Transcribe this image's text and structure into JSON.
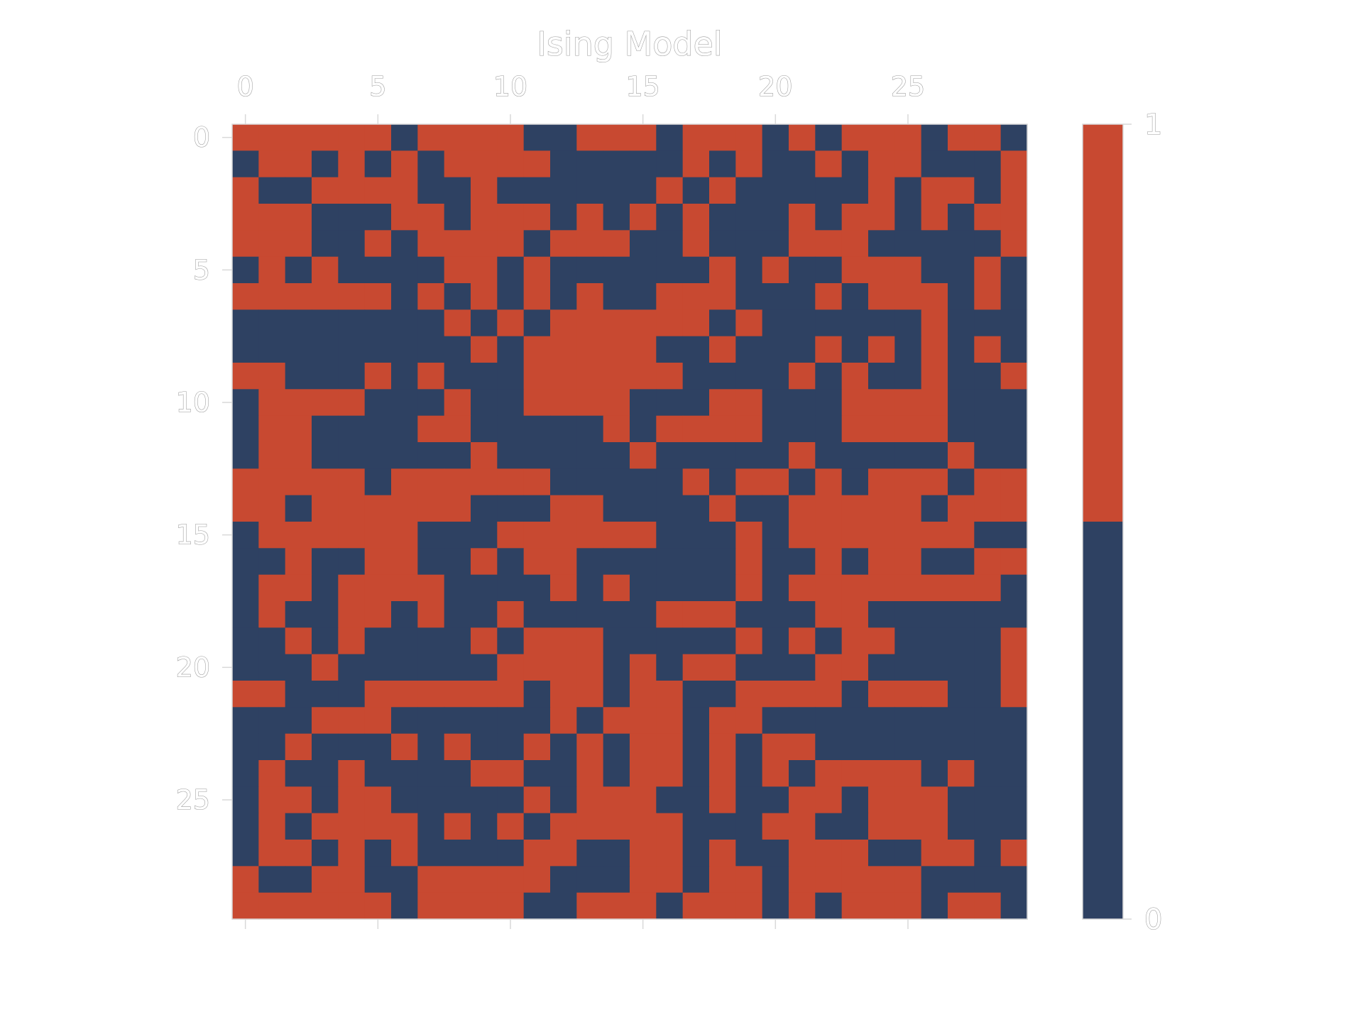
{
  "chart_data": {
    "type": "heatmap",
    "title": "Ising Model",
    "xlabel": "",
    "ylabel": "",
    "x_ticks": [
      0,
      5,
      10,
      15,
      20,
      25
    ],
    "y_ticks": [
      0,
      5,
      10,
      15,
      20,
      25
    ],
    "tick_labels_x": [
      "0",
      "5",
      "10",
      "15",
      "20",
      "25"
    ],
    "tick_labels_y": [
      "0",
      "5",
      "10",
      "15",
      "20",
      "25"
    ],
    "x_tick_position": "top",
    "grid": false,
    "rows": 30,
    "cols": 30,
    "colorbar": {
      "ticks": [
        0,
        1
      ],
      "tick_labels": [
        "0",
        "1"
      ],
      "placement": "right"
    },
    "colors": {
      "0": "#2e4162",
      "1": "#c84931"
    },
    "values": [
      "111111011110011101110101110110",
      "011010101111000001010010110001",
      "100111100100000010100000101101",
      "111000110111010101000101101011",
      "111001011110111001000111000001",
      "010100001101000000101001110010",
      "111111010101010011100010111010",
      "000000001010111111010000001000",
      "000000000101111100100010101010",
      "110001010001111110000101001001",
      "011110001001111000110001111000",
      "011000011000001011110001111000",
      "011000000100000100000100000100",
      "111110111111000001011010111011",
      "110111111000110000100111110111",
      "011111100011111100010111111100",
      "001001100101100000010010110011",
      "011011110000101000010111111110",
      "010011010010000011100011000000",
      "001010000101110000010101100001",
      "000100000011110101100011000001",
      "110001111110110110011110111001",
      "000111000000101110110000000000",
      "001000101001010110101100000000",
      "010010000110010110101011110100",
      "011011000001011100100110111000",
      "010111101010111110001100111000",
      "011010100001100110100111001101",
      "100110011111000110110111110000",
      "111111011110011101110101110110"
    ]
  }
}
